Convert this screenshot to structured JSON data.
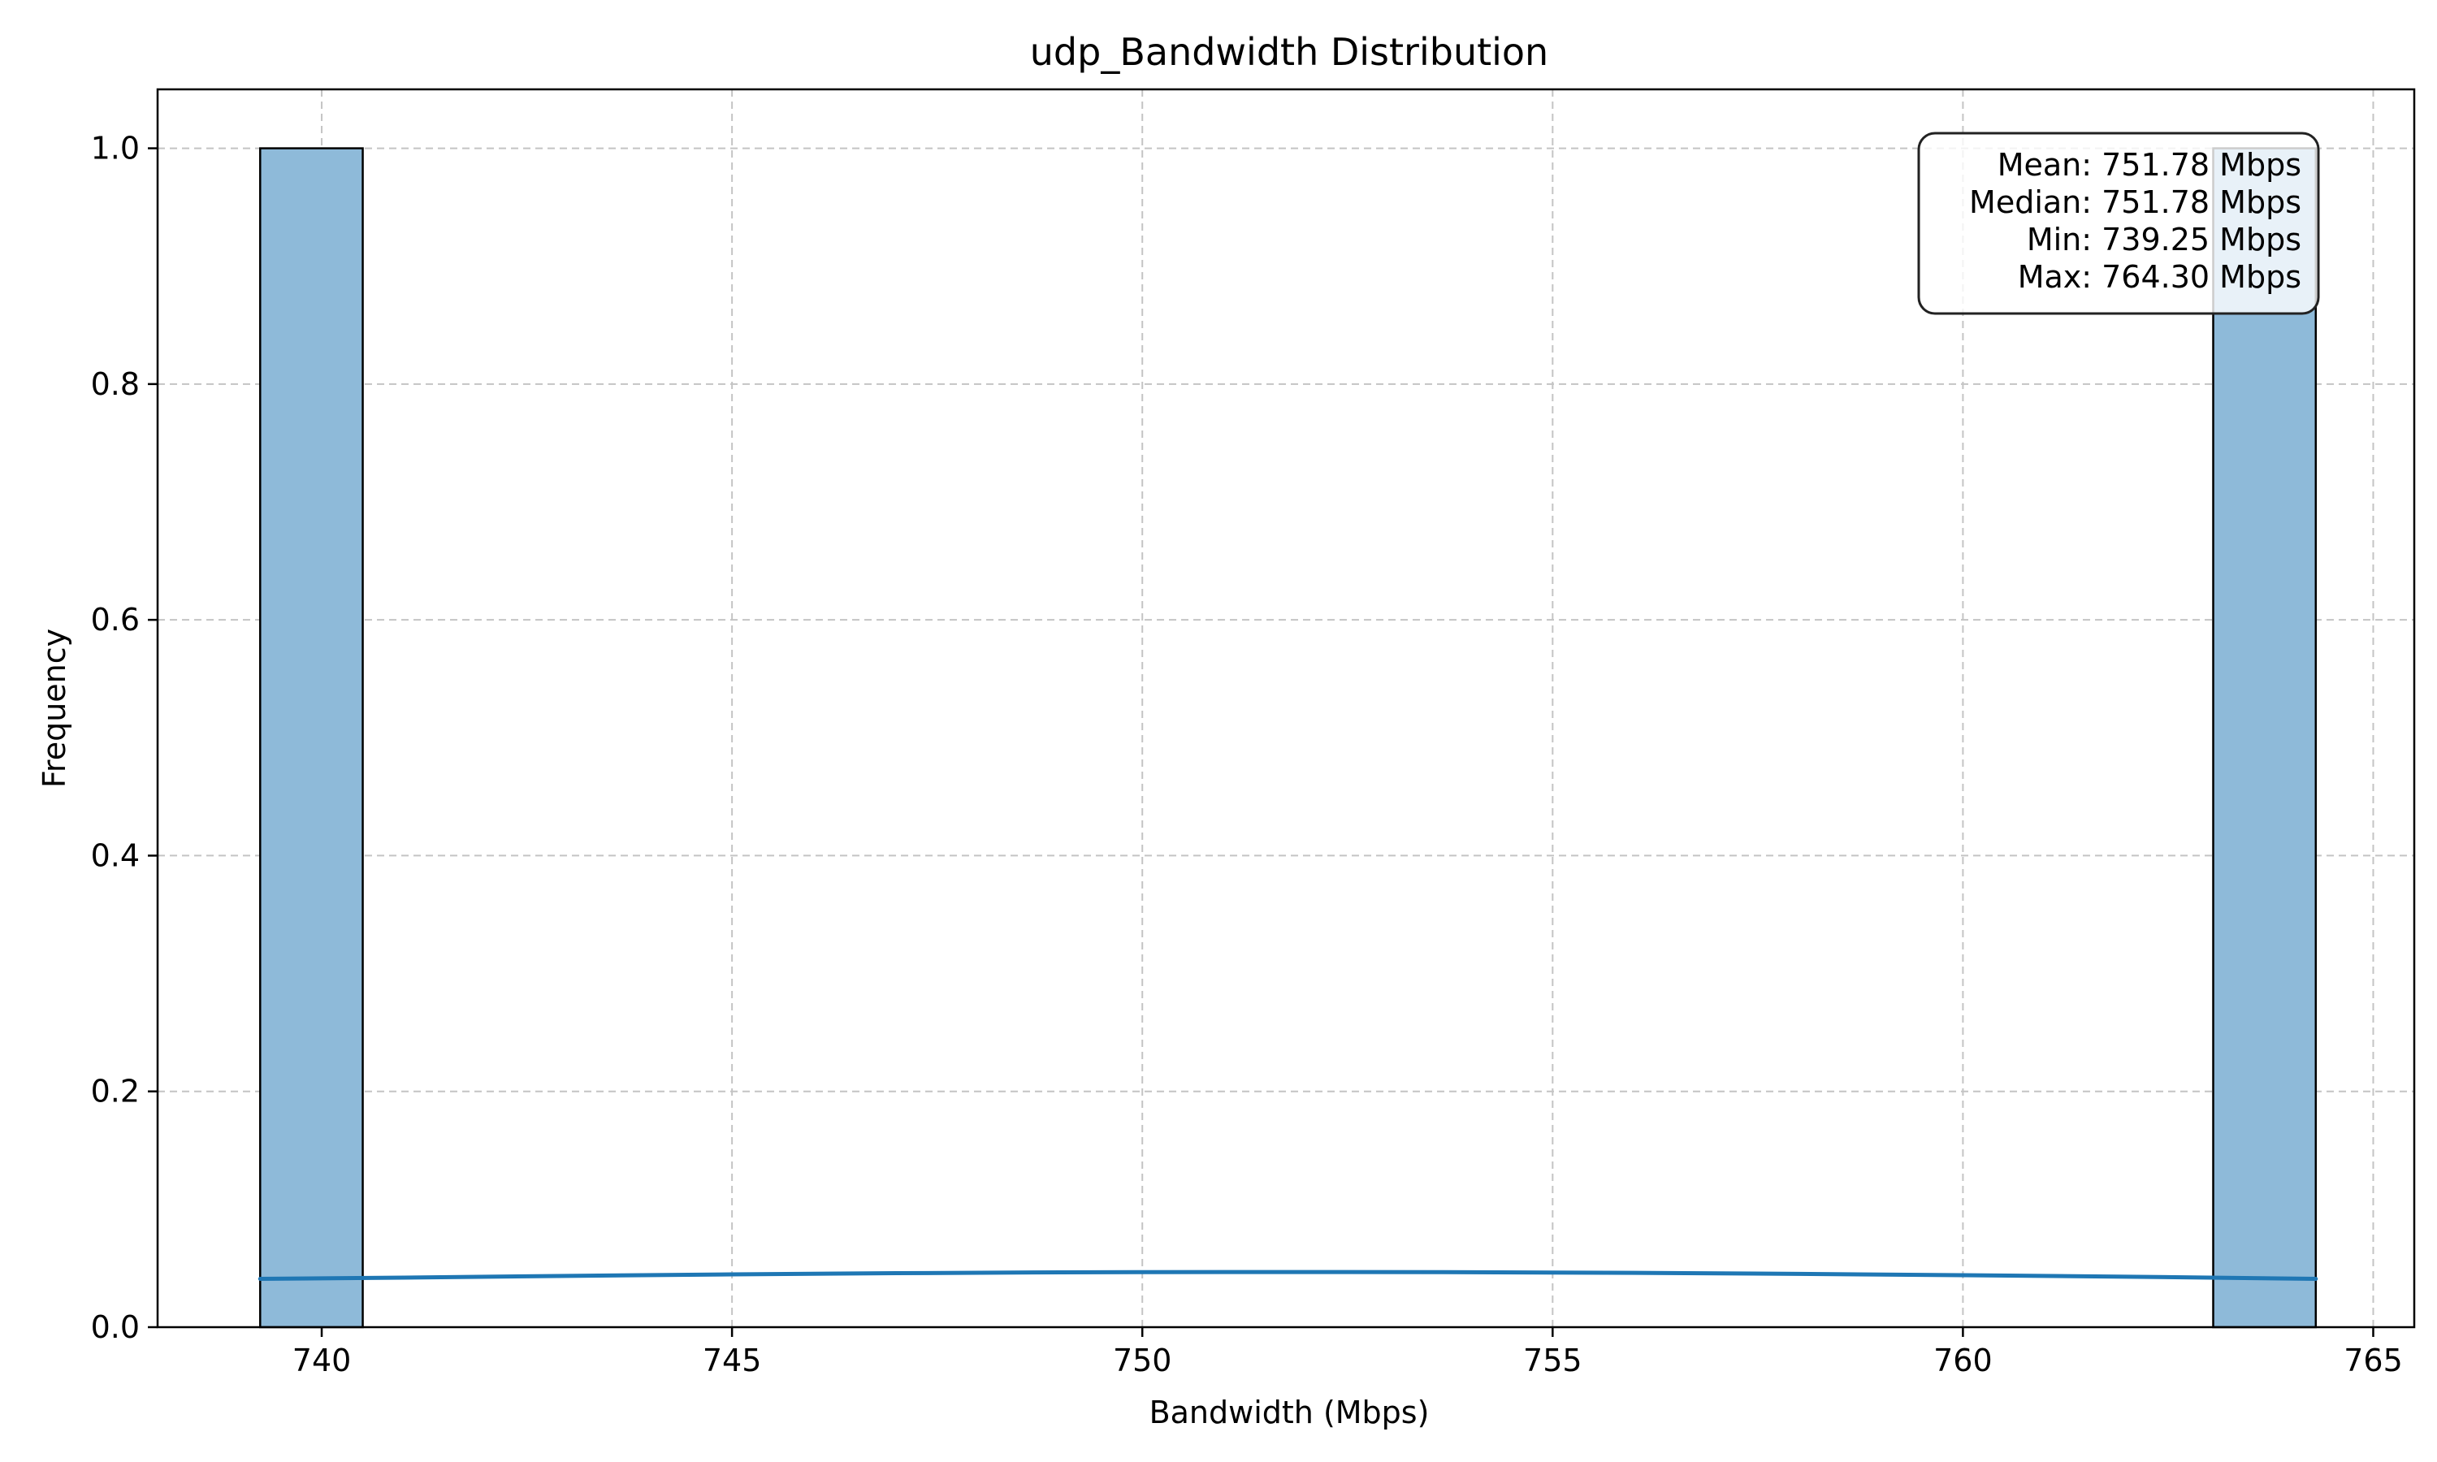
{
  "chart_data": {
    "type": "bar",
    "title": "udp_Bandwidth Distribution",
    "xlabel": "Bandwidth (Mbps)",
    "ylabel": "Frequency",
    "xlim": [
      738.0,
      765.5
    ],
    "ylim": [
      0.0,
      1.05
    ],
    "xticks": [
      740,
      745,
      750,
      755,
      760,
      765
    ],
    "yticks": [
      0.0,
      0.2,
      0.4,
      0.6,
      0.8,
      1.0
    ],
    "grid": true,
    "bins": [
      {
        "x0": 739.25,
        "x1": 740.5,
        "value": 1
      },
      {
        "x0": 763.05,
        "x1": 764.3,
        "value": 1
      }
    ],
    "kde_line": {
      "x": [
        739.25,
        741,
        743,
        745,
        747,
        749,
        751,
        752.5,
        754,
        756,
        758,
        760,
        762,
        764.3
      ],
      "y": [
        0.041,
        0.042,
        0.0435,
        0.0448,
        0.0458,
        0.0465,
        0.0468,
        0.0468,
        0.0466,
        0.0461,
        0.0452,
        0.0441,
        0.0428,
        0.041
      ]
    },
    "bar_color": "#8ebad9",
    "bar_edge_color": "#000000",
    "line_color": "#1f77b4",
    "stats": [
      "Mean: 751.78 Mbps",
      "Median: 751.78 Mbps",
      "Min: 739.25 Mbps",
      "Max: 764.30 Mbps"
    ]
  }
}
